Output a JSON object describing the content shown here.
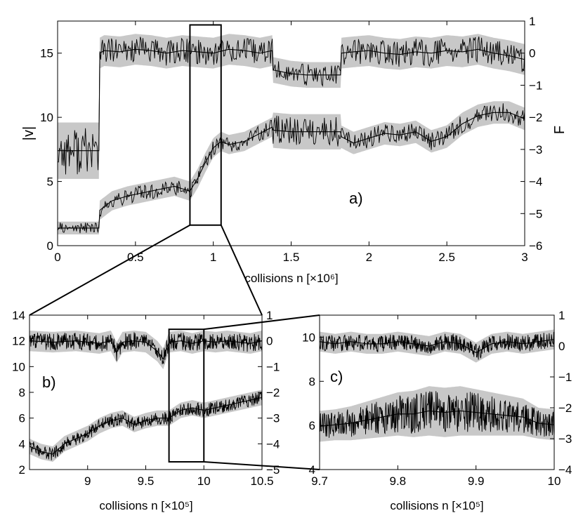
{
  "chart_data": [
    {
      "panel": "a)",
      "type": "line",
      "xlabel": "collisions n [×10⁶]",
      "ylabel_left": "|v|",
      "ylabel_right": "F",
      "xlim": [
        0,
        3
      ],
      "ylim_left": [
        0,
        17.5
      ],
      "ylim_right": [
        -6,
        1
      ],
      "xticks": [
        "0",
        "0.5",
        "1",
        "1.5",
        "2",
        "2.5",
        "3"
      ],
      "yticks_left": [
        "0",
        "5",
        "10",
        "15"
      ],
      "yticks_right": [
        "1",
        "0",
        "−1",
        "−2",
        "−3",
        "−4",
        "−5",
        "−6"
      ],
      "zoom_box": {
        "x": [
          0.85,
          1.05
        ],
        "y": [
          1.6,
          17.2
        ]
      },
      "series": [
        {
          "role": "|v| (upper trace, left axis)",
          "x": [
            0,
            0.27,
            0.27,
            0.3,
            0.4,
            0.5,
            0.6,
            0.7,
            0.8,
            0.9,
            1.0,
            1.1,
            1.2,
            1.3,
            1.38,
            1.38,
            1.5,
            1.6,
            1.7,
            1.82,
            1.82,
            1.9,
            2.0,
            2.1,
            2.2,
            2.3,
            2.4,
            2.5,
            2.6,
            2.7,
            2.8,
            2.9,
            3.0
          ],
          "y": [
            7.4,
            7.4,
            15.0,
            15.2,
            15.1,
            15.3,
            15.2,
            15.0,
            15.2,
            15.1,
            15.0,
            15.3,
            15.2,
            15.0,
            15.2,
            13.7,
            13.4,
            13.3,
            13.3,
            13.3,
            15.0,
            15.1,
            15.2,
            15.0,
            14.9,
            15.1,
            15.0,
            15.2,
            15.1,
            15.3,
            15.0,
            14.8,
            14.5
          ],
          "spread": [
            2.2,
            2.2,
            1.2,
            1.2,
            1.2,
            1.2,
            1.2,
            1.2,
            1.2,
            1.2,
            1.2,
            1.2,
            1.2,
            1.2,
            1.2,
            1.0,
            1.0,
            1.0,
            1.0,
            1.0,
            1.2,
            1.2,
            1.2,
            1.2,
            1.2,
            1.2,
            1.2,
            1.2,
            1.2,
            1.2,
            1.2,
            1.2,
            1.2
          ]
        },
        {
          "role": "F (lower trace, right axis)",
          "x": [
            0,
            0.27,
            0.27,
            0.35,
            0.45,
            0.55,
            0.65,
            0.75,
            0.85,
            0.9,
            0.95,
            1.0,
            1.05,
            1.1,
            1.2,
            1.3,
            1.38,
            1.38,
            1.5,
            1.6,
            1.7,
            1.82,
            1.82,
            1.9,
            2.0,
            2.1,
            2.2,
            2.3,
            2.4,
            2.5,
            2.6,
            2.7,
            2.8,
            2.9,
            3.0
          ],
          "y": [
            -5.45,
            -5.45,
            -4.9,
            -4.6,
            -4.45,
            -4.35,
            -4.25,
            -4.15,
            -4.3,
            -3.9,
            -3.4,
            -2.95,
            -2.75,
            -2.85,
            -2.75,
            -2.5,
            -2.3,
            -2.4,
            -2.45,
            -2.45,
            -2.45,
            -2.45,
            -2.6,
            -2.8,
            -2.65,
            -2.5,
            -2.55,
            -2.45,
            -2.75,
            -2.6,
            -2.2,
            -1.95,
            -1.85,
            -1.85,
            -2.05
          ],
          "spread": [
            0.2,
            0.2,
            0.3,
            0.3,
            0.3,
            0.3,
            0.3,
            0.3,
            0.3,
            0.3,
            0.3,
            0.3,
            0.3,
            0.3,
            0.3,
            0.3,
            0.3,
            0.55,
            0.55,
            0.55,
            0.55,
            0.55,
            0.35,
            0.35,
            0.35,
            0.35,
            0.35,
            0.35,
            0.35,
            0.35,
            0.35,
            0.35,
            0.35,
            0.35,
            0.35
          ]
        }
      ]
    },
    {
      "panel": "b)",
      "type": "line",
      "xlabel": "collisions n [×10⁵]",
      "xlim": [
        8.5,
        10.5
      ],
      "ylim_left": [
        2,
        14
      ],
      "ylim_right": [
        -5,
        1
      ],
      "xticks": [
        "9",
        "9.5",
        "10",
        "10.5"
      ],
      "yticks_left": [
        "2",
        "4",
        "6",
        "8",
        "10",
        "12",
        "14"
      ],
      "yticks_right": [
        "1",
        "0",
        "−1",
        "−2",
        "−3",
        "−4",
        "−5"
      ],
      "zoom_box": {
        "x": [
          9.7,
          10.0
        ],
        "y": [
          2.6,
          12.9
        ]
      },
      "series": [
        {
          "role": "|v| (upper trace, left axis)",
          "x": [
            8.5,
            8.7,
            8.9,
            9.1,
            9.2,
            9.25,
            9.3,
            9.4,
            9.5,
            9.6,
            9.65,
            9.7,
            9.8,
            9.9,
            10.0,
            10.1,
            10.2,
            10.3,
            10.4,
            10.5
          ],
          "y": [
            12.0,
            11.9,
            12.0,
            11.8,
            12.0,
            11.1,
            11.9,
            12.0,
            11.9,
            11.2,
            10.6,
            11.9,
            12.0,
            11.8,
            12.0,
            11.9,
            12.0,
            11.9,
            11.8,
            12.0
          ],
          "spread": [
            0.8,
            0.8,
            0.8,
            0.8,
            0.8,
            0.8,
            0.8,
            0.8,
            0.8,
            0.8,
            0.8,
            0.8,
            0.8,
            0.8,
            0.8,
            0.8,
            0.8,
            0.8,
            0.8,
            0.8
          ]
        },
        {
          "role": "F (lower trace, right axis)",
          "x": [
            8.5,
            8.6,
            8.7,
            8.8,
            8.9,
            9.0,
            9.1,
            9.2,
            9.3,
            9.4,
            9.5,
            9.6,
            9.7,
            9.8,
            9.9,
            10.0,
            10.1,
            10.2,
            10.3,
            10.4,
            10.5
          ],
          "y": [
            -4.1,
            -4.3,
            -4.4,
            -4.0,
            -3.8,
            -3.6,
            -3.3,
            -3.1,
            -3.0,
            -3.25,
            -3.1,
            -3.0,
            -3.0,
            -2.7,
            -2.6,
            -2.7,
            -2.6,
            -2.5,
            -2.4,
            -2.3,
            -2.2
          ],
          "spread": [
            0.3,
            0.3,
            0.3,
            0.3,
            0.3,
            0.3,
            0.3,
            0.3,
            0.3,
            0.3,
            0.3,
            0.3,
            0.3,
            0.3,
            0.3,
            0.3,
            0.3,
            0.3,
            0.3,
            0.3,
            0.3
          ]
        }
      ]
    },
    {
      "panel": "c)",
      "type": "line",
      "xlabel": "collisions n [×10⁵]",
      "xlim": [
        9.7,
        10.0
      ],
      "ylim_left": [
        4,
        11
      ],
      "ylim_right": [
        -4,
        1
      ],
      "xticks": [
        "9.7",
        "9.8",
        "9.9",
        "10"
      ],
      "yticks_left": [
        "4",
        "6",
        "8",
        "10"
      ],
      "yticks_right": [
        "1",
        "0",
        "−1",
        "−2",
        "−3",
        "−4"
      ],
      "series": [
        {
          "role": "|v| (upper trace, left axis)",
          "x": [
            9.7,
            9.72,
            9.74,
            9.76,
            9.78,
            9.8,
            9.82,
            9.84,
            9.86,
            9.88,
            9.9,
            9.92,
            9.94,
            9.96,
            9.98,
            10.0
          ],
          "y": [
            9.8,
            9.7,
            9.8,
            9.7,
            9.7,
            9.8,
            9.7,
            9.6,
            9.8,
            9.7,
            9.3,
            9.7,
            9.8,
            9.7,
            9.8,
            9.9
          ],
          "spread": [
            0.45,
            0.45,
            0.45,
            0.45,
            0.45,
            0.45,
            0.45,
            0.45,
            0.45,
            0.45,
            0.45,
            0.45,
            0.45,
            0.45,
            0.45,
            0.45
          ]
        },
        {
          "role": "F (lower trace, right axis)",
          "x": [
            9.7,
            9.72,
            9.74,
            9.76,
            9.78,
            9.8,
            9.82,
            9.84,
            9.86,
            9.88,
            9.9,
            9.92,
            9.94,
            9.96,
            9.98,
            10.0
          ],
          "y": [
            -2.6,
            -2.55,
            -2.5,
            -2.4,
            -2.3,
            -2.2,
            -2.2,
            -2.1,
            -2.15,
            -2.1,
            -2.15,
            -2.2,
            -2.25,
            -2.3,
            -2.5,
            -2.55
          ],
          "spread": [
            0.5,
            0.5,
            0.55,
            0.6,
            0.65,
            0.7,
            0.75,
            0.8,
            0.8,
            0.8,
            0.75,
            0.7,
            0.65,
            0.6,
            0.5,
            0.5
          ]
        }
      ]
    }
  ],
  "colors": {
    "band": "#c8c8c8",
    "trace": "#000000",
    "axis": "#000000"
  }
}
